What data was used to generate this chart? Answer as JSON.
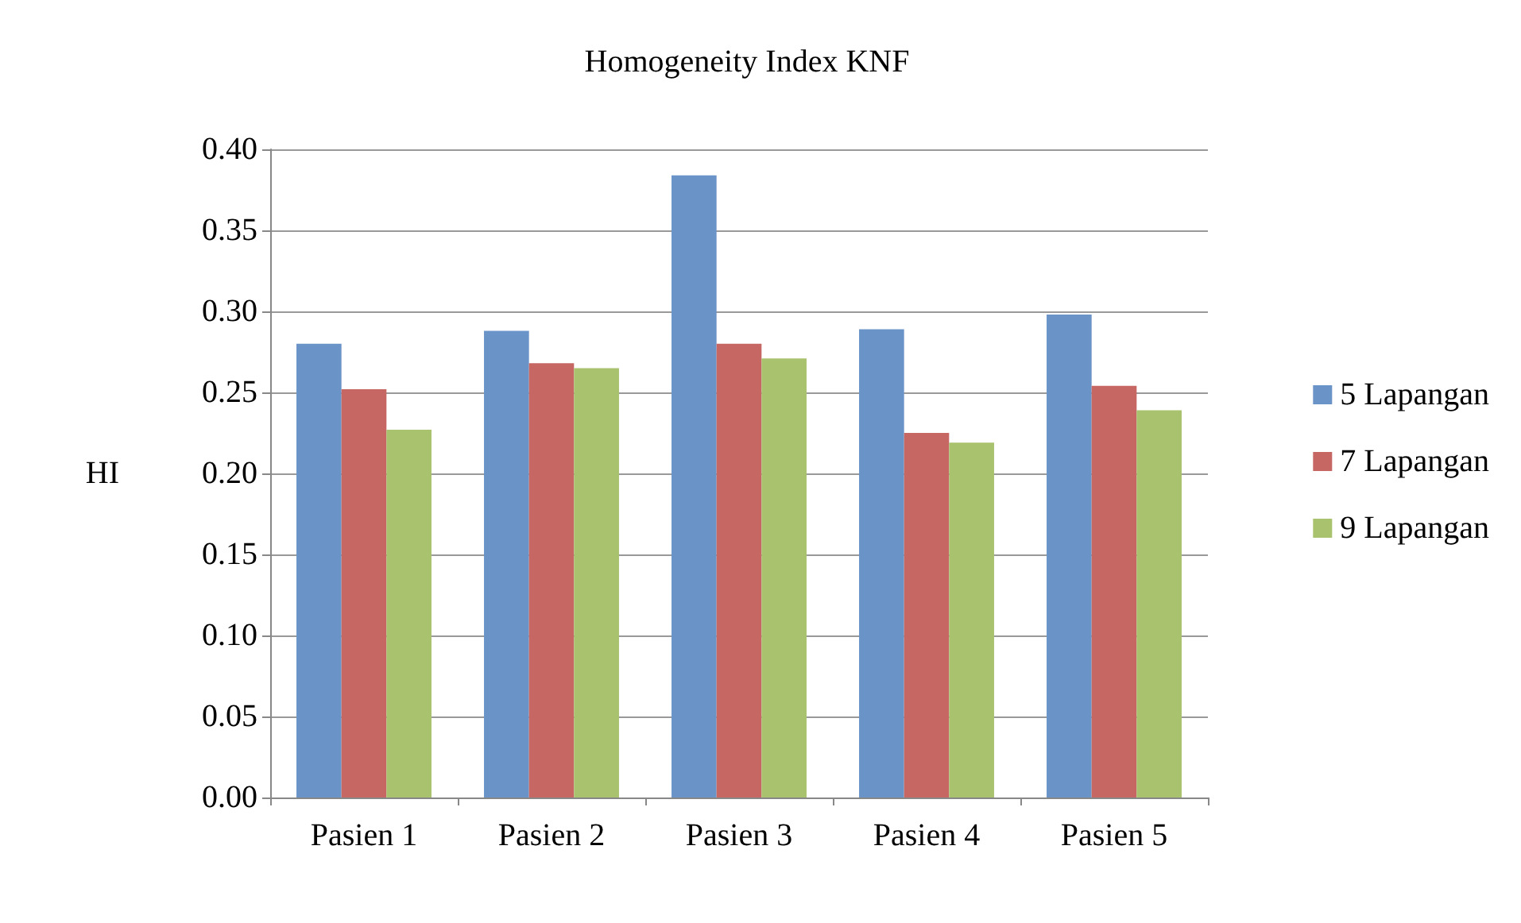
{
  "chart_data": {
    "type": "bar",
    "title": "Homogeneity Index KNF",
    "ylabel": "HI",
    "categories": [
      "Pasien 1",
      "Pasien 2",
      "Pasien 3",
      "Pasien 4",
      "Pasien 5"
    ],
    "series": [
      {
        "name": "5 Lapangan",
        "color": "#6a93c7",
        "values": [
          0.28,
          0.288,
          0.384,
          0.289,
          0.298
        ]
      },
      {
        "name": "7 Lapangan",
        "color": "#c66764",
        "values": [
          0.252,
          0.268,
          0.28,
          0.225,
          0.254
        ]
      },
      {
        "name": "9 Lapangan",
        "color": "#a8c26e",
        "values": [
          0.227,
          0.265,
          0.271,
          0.219,
          0.239
        ]
      }
    ],
    "ylim": [
      0,
      0.4
    ],
    "yticks": [
      {
        "value": 0,
        "label": "0.00"
      },
      {
        "value": 0.05,
        "label": "0.05"
      },
      {
        "value": 0.1,
        "label": "0.10"
      },
      {
        "value": 0.15,
        "label": "0.15"
      },
      {
        "value": 0.2,
        "label": "0.20"
      },
      {
        "value": 0.25,
        "label": "0.25"
      },
      {
        "value": 0.3,
        "label": "0.30"
      },
      {
        "value": 0.35,
        "label": "0.35"
      },
      {
        "value": 0.4,
        "label": "0.40"
      }
    ],
    "grid": "y",
    "legend": "right"
  }
}
